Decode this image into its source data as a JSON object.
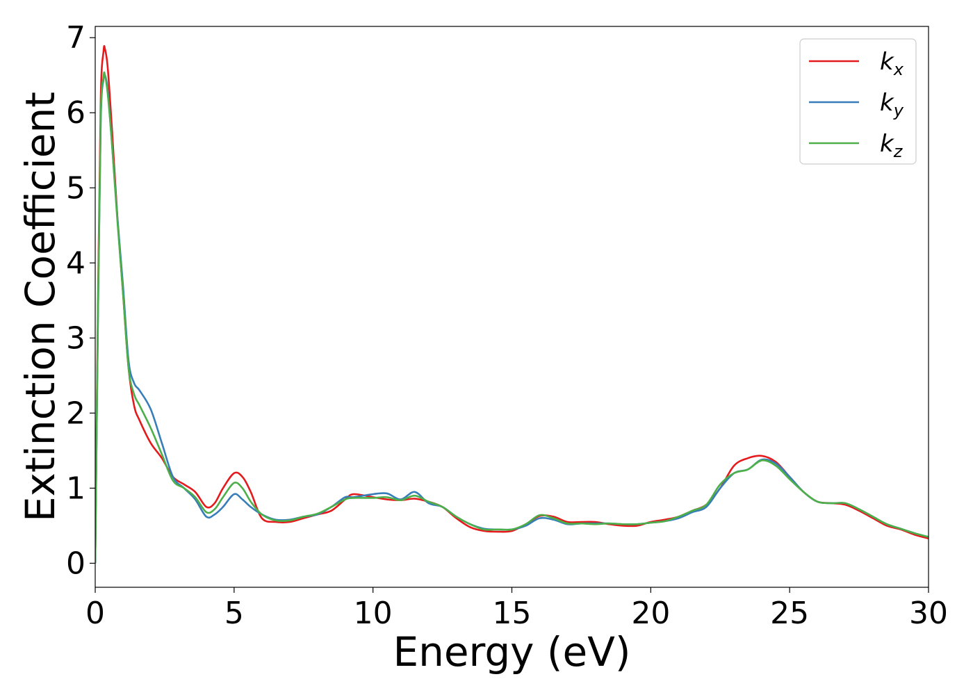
{
  "chart_data": {
    "type": "line",
    "xlabel": "Energy (eV)",
    "ylabel": "Extinction Coefficient",
    "xlim": [
      0,
      30
    ],
    "ylim": [
      -0.32,
      7.15
    ],
    "xticks": [
      0,
      5,
      10,
      15,
      20,
      25,
      30
    ],
    "yticks": [
      0,
      1,
      2,
      3,
      4,
      5,
      6,
      7
    ],
    "grid": false,
    "legend_position": "top-right",
    "series": [
      {
        "name": "k",
        "subscript": "x",
        "color": "#e41a1c",
        "x": [
          0,
          0.1,
          0.2,
          0.3,
          0.35,
          0.45,
          0.6,
          0.8,
          1.0,
          1.2,
          1.4,
          1.6,
          2.0,
          2.4,
          2.8,
          3.2,
          3.6,
          4.0,
          4.3,
          4.6,
          5.0,
          5.3,
          5.6,
          6.0,
          6.5,
          7.0,
          7.5,
          8.0,
          8.5,
          9.0,
          9.3,
          10.0,
          10.5,
          11.0,
          11.5,
          12.0,
          12.5,
          13.0,
          13.5,
          14.0,
          14.5,
          15.0,
          15.5,
          16.0,
          16.5,
          17.0,
          17.5,
          18.0,
          18.5,
          19.0,
          19.5,
          20.0,
          20.5,
          21.0,
          21.5,
          22.0,
          22.5,
          23.0,
          23.5,
          24.0,
          24.5,
          25.0,
          25.5,
          26.0,
          26.5,
          27.0,
          27.5,
          28.0,
          28.5,
          29.0,
          29.5,
          30.0
        ],
        "y": [
          0.0,
          3.5,
          6.2,
          6.82,
          6.85,
          6.6,
          5.8,
          4.6,
          3.6,
          2.6,
          2.1,
          1.9,
          1.6,
          1.4,
          1.15,
          1.05,
          0.95,
          0.75,
          0.8,
          1.0,
          1.2,
          1.15,
          0.95,
          0.6,
          0.55,
          0.55,
          0.6,
          0.65,
          0.7,
          0.85,
          0.92,
          0.88,
          0.85,
          0.84,
          0.86,
          0.82,
          0.75,
          0.6,
          0.48,
          0.43,
          0.42,
          0.43,
          0.52,
          0.63,
          0.62,
          0.55,
          0.55,
          0.55,
          0.52,
          0.5,
          0.5,
          0.55,
          0.58,
          0.62,
          0.7,
          0.78,
          1.0,
          1.3,
          1.4,
          1.43,
          1.35,
          1.15,
          0.95,
          0.82,
          0.8,
          0.78,
          0.7,
          0.6,
          0.5,
          0.45,
          0.38,
          0.33
        ]
      },
      {
        "name": "k",
        "subscript": "y",
        "color": "#377eb8",
        "x": [
          0,
          0.1,
          0.2,
          0.3,
          0.35,
          0.45,
          0.6,
          0.8,
          1.0,
          1.2,
          1.4,
          1.6,
          2.0,
          2.4,
          2.8,
          3.2,
          3.6,
          4.0,
          4.3,
          4.6,
          5.0,
          5.3,
          5.6,
          6.0,
          6.5,
          7.0,
          7.5,
          8.0,
          8.5,
          9.0,
          9.3,
          10.0,
          10.5,
          11.0,
          11.5,
          12.0,
          12.5,
          13.0,
          13.5,
          14.0,
          14.5,
          15.0,
          15.5,
          16.0,
          16.5,
          17.0,
          17.5,
          18.0,
          18.5,
          19.0,
          19.5,
          20.0,
          20.5,
          21.0,
          21.5,
          22.0,
          22.5,
          23.0,
          23.5,
          24.0,
          24.5,
          25.0,
          25.5,
          26.0,
          26.5,
          27.0,
          27.5,
          28.0,
          28.5,
          29.0,
          29.5,
          30.0
        ],
        "y": [
          0.0,
          3.3,
          5.9,
          6.45,
          6.5,
          6.3,
          5.6,
          4.6,
          3.7,
          2.7,
          2.4,
          2.3,
          2.05,
          1.6,
          1.15,
          1.0,
          0.85,
          0.62,
          0.65,
          0.75,
          0.92,
          0.85,
          0.75,
          0.65,
          0.58,
          0.58,
          0.62,
          0.65,
          0.75,
          0.88,
          0.88,
          0.92,
          0.93,
          0.85,
          0.95,
          0.8,
          0.75,
          0.62,
          0.52,
          0.46,
          0.45,
          0.45,
          0.5,
          0.6,
          0.58,
          0.52,
          0.53,
          0.53,
          0.53,
          0.52,
          0.52,
          0.54,
          0.56,
          0.6,
          0.68,
          0.75,
          1.0,
          1.2,
          1.25,
          1.38,
          1.33,
          1.15,
          0.95,
          0.82,
          0.8,
          0.8,
          0.72,
          0.62,
          0.52,
          0.46,
          0.4,
          0.35
        ]
      },
      {
        "name": "k",
        "subscript": "z",
        "color": "#4daf4a",
        "x": [
          0,
          0.1,
          0.2,
          0.3,
          0.35,
          0.45,
          0.6,
          0.8,
          1.0,
          1.2,
          1.4,
          1.6,
          2.0,
          2.4,
          2.8,
          3.2,
          3.6,
          4.0,
          4.3,
          4.6,
          5.0,
          5.3,
          5.6,
          6.0,
          6.5,
          7.0,
          7.5,
          8.0,
          8.5,
          9.0,
          9.3,
          10.0,
          10.5,
          11.0,
          11.5,
          12.0,
          12.5,
          13.0,
          13.5,
          14.0,
          14.5,
          15.0,
          15.5,
          16.0,
          16.5,
          17.0,
          17.5,
          18.0,
          18.5,
          19.0,
          19.5,
          20.0,
          20.5,
          21.0,
          21.5,
          22.0,
          22.5,
          23.0,
          23.5,
          24.0,
          24.5,
          25.0,
          25.5,
          26.0,
          26.5,
          27.0,
          27.5,
          28.0,
          28.5,
          29.0,
          29.5,
          30.0
        ],
        "y": [
          0.0,
          3.3,
          5.95,
          6.48,
          6.5,
          6.25,
          5.6,
          4.55,
          3.6,
          2.6,
          2.25,
          2.1,
          1.8,
          1.45,
          1.1,
          1.0,
          0.88,
          0.68,
          0.72,
          0.88,
          1.07,
          1.0,
          0.82,
          0.65,
          0.57,
          0.57,
          0.62,
          0.66,
          0.75,
          0.85,
          0.87,
          0.87,
          0.88,
          0.84,
          0.9,
          0.82,
          0.75,
          0.62,
          0.52,
          0.45,
          0.45,
          0.45,
          0.52,
          0.64,
          0.6,
          0.53,
          0.53,
          0.52,
          0.53,
          0.52,
          0.52,
          0.54,
          0.56,
          0.62,
          0.7,
          0.78,
          1.05,
          1.2,
          1.25,
          1.37,
          1.3,
          1.12,
          0.95,
          0.82,
          0.8,
          0.8,
          0.72,
          0.62,
          0.52,
          0.46,
          0.4,
          0.35
        ]
      }
    ]
  }
}
